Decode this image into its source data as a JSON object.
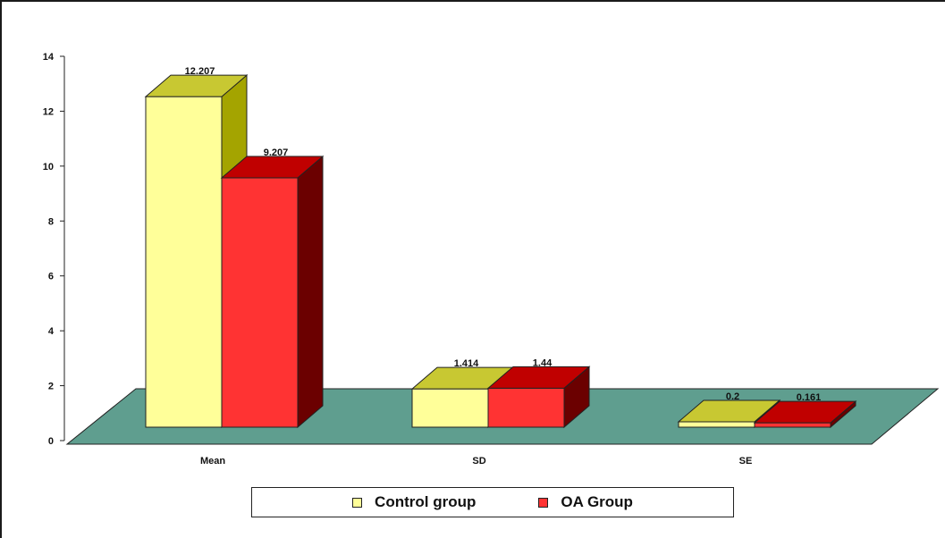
{
  "chart_data": {
    "type": "bar",
    "categories": [
      "Mean",
      "SD",
      "SE"
    ],
    "series": [
      {
        "name": "Control group",
        "values": [
          12.207,
          1.414,
          0.2
        ],
        "color": "#ffff99",
        "side_color": "#a4a400",
        "top_color": "#c8c832"
      },
      {
        "name": "OA Group",
        "values": [
          9.207,
          1.44,
          0.161
        ],
        "color": "#ff3333",
        "side_color": "#6b0000",
        "top_color": "#c00000"
      }
    ],
    "data_labels": [
      [
        "12.207",
        "1.414",
        "0.2"
      ],
      [
        "9.207",
        "1.44",
        "0.161"
      ]
    ],
    "ylim": [
      0,
      14
    ],
    "yticks": [
      "0",
      "2",
      "4",
      "6",
      "8",
      "10",
      "12",
      "14"
    ],
    "title": "",
    "xlabel": "",
    "ylabel": "",
    "floor_color": "#5f9e8f",
    "legend_position": "bottom",
    "grid": false
  }
}
